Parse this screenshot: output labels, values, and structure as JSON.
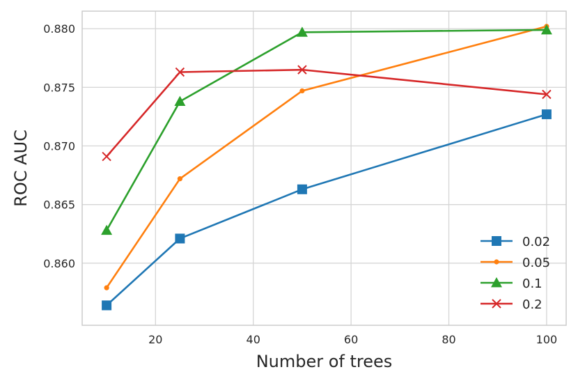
{
  "chart_data": {
    "type": "line",
    "xlabel": "Number of trees",
    "ylabel": "ROC AUC",
    "xlim": [
      5,
      104
    ],
    "ylim": [
      0.8547,
      0.8815
    ],
    "x_ticks": [
      20,
      40,
      60,
      80,
      100
    ],
    "y_ticks": [
      0.86,
      0.865,
      0.87,
      0.875,
      0.88
    ],
    "x_tick_labels": [
      "20",
      "40",
      "60",
      "80",
      "100"
    ],
    "y_tick_labels": [
      "0.860",
      "0.865",
      "0.870",
      "0.875",
      "0.880"
    ],
    "grid": true,
    "legend_position": "lower-right",
    "x": [
      10,
      25,
      50,
      100
    ],
    "series": [
      {
        "name": "0.02",
        "values": [
          0.8564,
          0.8621,
          0.8663,
          0.8727
        ],
        "color": "#1f77b4",
        "marker": "square"
      },
      {
        "name": "0.05",
        "values": [
          0.8579,
          0.8672,
          0.8747,
          0.8802
        ],
        "color": "#ff7f0e",
        "marker": "circle"
      },
      {
        "name": "0.1",
        "values": [
          0.8628,
          0.8738,
          0.8797,
          0.8799
        ],
        "color": "#2ca02c",
        "marker": "triangle"
      },
      {
        "name": "0.2",
        "values": [
          0.8691,
          0.8763,
          0.8765,
          0.8744
        ],
        "color": "#d62728",
        "marker": "x"
      }
    ]
  }
}
